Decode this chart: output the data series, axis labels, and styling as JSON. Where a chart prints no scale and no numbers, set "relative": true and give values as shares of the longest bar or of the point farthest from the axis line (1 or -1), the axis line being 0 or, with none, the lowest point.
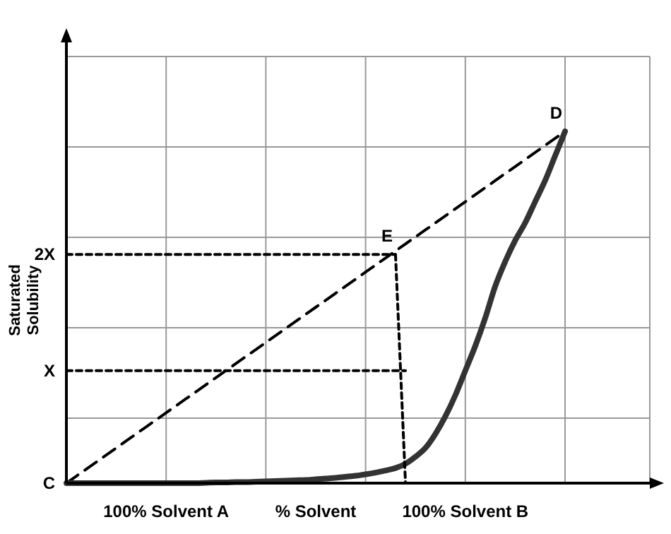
{
  "chart_data": {
    "type": "line",
    "relative": true,
    "ylabel": "Saturated Solubility",
    "grid": true,
    "categories": [
      null,
      null,
      null,
      null,
      null,
      null,
      null,
      null,
      null,
      null,
      "100% Solvent A",
      null,
      null,
      null,
      null,
      null,
      null,
      null,
      null,
      null,
      null,
      null,
      null,
      null,
      null,
      "% Solvent",
      null,
      null,
      null,
      null,
      null,
      null,
      null,
      null,
      null,
      null,
      null,
      null,
      null,
      null,
      "100% Solvent B",
      null,
      null,
      null,
      null,
      null,
      null,
      null,
      null,
      null,
      null
    ],
    "series": [
      {
        "color": "#000000",
        "line_style": "dashed",
        "values": [
          0,
          0.02,
          0.04,
          0.06,
          0.08,
          0.1,
          0.12,
          0.14,
          0.16,
          0.18,
          0.2,
          0.22,
          0.24,
          0.26,
          0.28,
          0.3,
          0.32,
          0.34,
          0.36,
          0.38,
          0.4,
          0.42,
          0.44,
          0.46,
          0.48,
          0.5,
          0.52,
          0.54,
          0.56,
          0.58,
          0.6,
          0.62,
          0.64,
          0.66,
          0.68,
          0.7,
          0.72,
          0.74,
          0.76,
          0.78,
          0.8,
          0.82,
          0.84,
          0.86,
          0.88,
          0.9,
          0.92,
          0.94,
          0.96,
          0.98,
          1
        ]
      },
      {
        "color": "#000000",
        "line_style": "dotted",
        "values": [
          0.65,
          0.65,
          0.65,
          0.65,
          0.65,
          0.65,
          0.65,
          0.65,
          0.65,
          0.65,
          0.65,
          0.65,
          0.65,
          0.65,
          0.65,
          0.65,
          0.65,
          0.65,
          0.65,
          0.65,
          0.65,
          0.65,
          0.65,
          0.65,
          0.65,
          0.65,
          0.65,
          0.65,
          0.65,
          0.65,
          0.65,
          0.65,
          0.65,
          0.65,
          null,
          null,
          null,
          null,
          null,
          null,
          null,
          null,
          null,
          null,
          null,
          null,
          null,
          null,
          null,
          null,
          null
        ]
      },
      {
        "color": "#333333",
        "line_style": "solid",
        "values": [
          0,
          0,
          0,
          0,
          0,
          0,
          0,
          0,
          0,
          0,
          0,
          0,
          0,
          0,
          0.001,
          0.002,
          0.002,
          0.003,
          0.003,
          0.004,
          0.005,
          0.006,
          0.007,
          0.008,
          0.009,
          0.011,
          0.013,
          0.015,
          0.018,
          0.021,
          0.025,
          0.03,
          0.036,
          0.043,
          0.055,
          0.075,
          0.1,
          0.14,
          0.19,
          0.25,
          0.32,
          0.39,
          0.47,
          0.56,
          0.63,
          0.69,
          0.74,
          0.8,
          0.86,
          0.93,
          1
        ]
      },
      {
        "color": "#000000",
        "line_style": "dotted",
        "values": [
          0.32,
          0.32,
          0.32,
          0.32,
          0.32,
          0.32,
          0.32,
          0.32,
          0.32,
          0.32,
          0.32,
          0.32,
          0.32,
          0.32,
          0.32,
          0.32,
          0.32,
          0.32,
          0.32,
          0.32,
          0.32,
          0.32,
          0.32,
          0.32,
          0.32,
          0.32,
          0.32,
          0.32,
          0.32,
          0.32,
          0.32,
          0.32,
          0.32,
          0.32,
          0.32,
          null,
          null,
          null,
          null,
          null,
          null,
          null,
          null,
          null,
          null,
          null,
          null,
          null,
          null,
          null,
          null
        ]
      },
      {
        "color": "#000000",
        "line_style": "dotted",
        "values": [
          null,
          null,
          null,
          null,
          null,
          null,
          null,
          null,
          null,
          null,
          null,
          null,
          null,
          null,
          null,
          null,
          null,
          null,
          null,
          null,
          null,
          null,
          null,
          null,
          null,
          null,
          null,
          null,
          null,
          null,
          null,
          null,
          null,
          0.65,
          0,
          null,
          null,
          null,
          null,
          null,
          null,
          null,
          null,
          null,
          null,
          null,
          null,
          null,
          null,
          null,
          null
        ]
      }
    ],
    "annotations": [
      "D",
      "E",
      "C",
      "X",
      "2X"
    ]
  }
}
